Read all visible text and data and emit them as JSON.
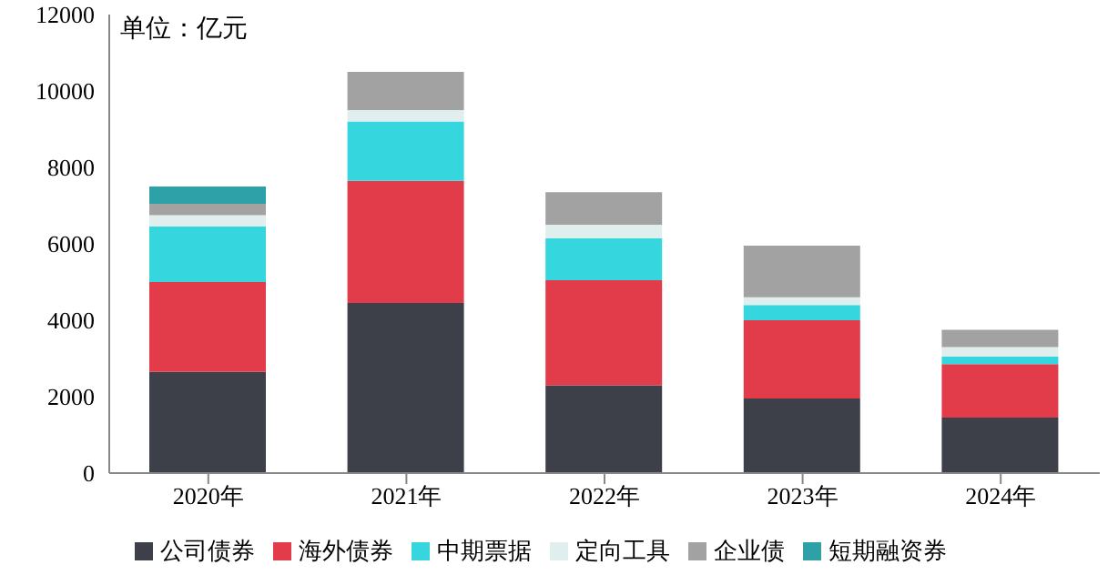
{
  "chart_data": {
    "type": "bar",
    "stacked": true,
    "ylabel": "单位：亿元",
    "categories": [
      "2020年",
      "2021年",
      "2022年",
      "2023年",
      "2024年"
    ],
    "series": [
      {
        "name": "公司债券",
        "color": "#3d4049",
        "values": [
          2650,
          4450,
          2300,
          1950,
          1450
        ]
      },
      {
        "name": "海外债券",
        "color": "#e23b4a",
        "values": [
          2350,
          3200,
          2750,
          2050,
          1400
        ]
      },
      {
        "name": "中期票据",
        "color": "#36d6df",
        "values": [
          1450,
          1550,
          1100,
          400,
          200
        ]
      },
      {
        "name": "定向工具",
        "color": "#e0eeee",
        "values": [
          300,
          300,
          350,
          200,
          250
        ]
      },
      {
        "name": "企业债",
        "color": "#a2a2a2",
        "values": [
          300,
          1000,
          850,
          1350,
          450
        ]
      },
      {
        "name": "短期融资券",
        "color": "#2ea0a8",
        "values": [
          450,
          null,
          null,
          null,
          null
        ]
      }
    ],
    "ylim": [
      0,
      12000
    ],
    "yticks": [
      0,
      2000,
      4000,
      6000,
      8000,
      10000,
      12000
    ],
    "grid": false,
    "legend": "bottom"
  }
}
